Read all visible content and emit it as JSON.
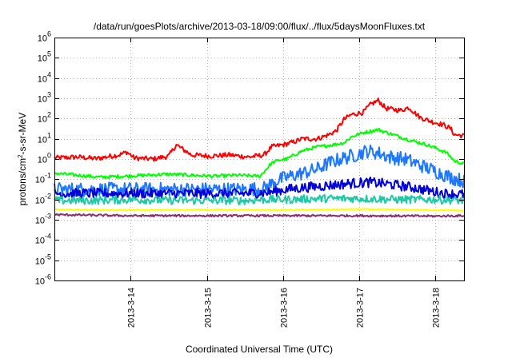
{
  "chart_data": {
    "type": "line",
    "title": "/data/run/goesPlots/archive/2013-03-18/09:00/flux/../flux/5daysMoonFluxes.txt",
    "xlabel": "Coordinated Universal Time (UTC)",
    "ylabel": "protons/cm2-s-sr-MeV",
    "ylabel_parts": {
      "pre": "protons/cm",
      "sup": "2",
      "post": "-s-sr-MeV"
    },
    "yscale": "log",
    "ylim_exp": [
      -6,
      6
    ],
    "y_ticks": [
      {
        "base": "10",
        "exp": "-6"
      },
      {
        "base": "10",
        "exp": "-5"
      },
      {
        "base": "10",
        "exp": "-4"
      },
      {
        "base": "10",
        "exp": "-3"
      },
      {
        "base": "10",
        "exp": "-2"
      },
      {
        "base": "10",
        "exp": "-1"
      },
      {
        "base": "10",
        "exp": "0"
      },
      {
        "base": "10",
        "exp": "1"
      },
      {
        "base": "10",
        "exp": "2"
      },
      {
        "base": "10",
        "exp": "3"
      },
      {
        "base": "10",
        "exp": "4"
      },
      {
        "base": "10",
        "exp": "5"
      },
      {
        "base": "10",
        "exp": "6"
      }
    ],
    "xlim": [
      "2013-03-13 00:00",
      "2013-03-18 09:00"
    ],
    "x_ticks": [
      "2013-3-14",
      "2013-3-15",
      "2013-3-16",
      "2013-3-17",
      "2013-3-18"
    ],
    "grid": true,
    "series": [
      {
        "color": "#ff0000",
        "noise": 0.12,
        "log_values": [
          [
            0.0,
            0.05
          ],
          [
            0.3,
            0.1
          ],
          [
            0.55,
            0.02
          ],
          [
            0.75,
            0.15
          ],
          [
            0.85,
            0.2
          ],
          [
            0.95,
            0.35
          ],
          [
            1.05,
            0.05
          ],
          [
            1.3,
            0.0
          ],
          [
            1.5,
            0.15
          ],
          [
            1.6,
            0.7
          ],
          [
            1.7,
            0.45
          ],
          [
            1.8,
            0.2
          ],
          [
            2.05,
            0.15
          ],
          [
            2.3,
            0.2
          ],
          [
            2.55,
            0.1
          ],
          [
            2.75,
            0.2
          ],
          [
            2.85,
            0.6
          ],
          [
            3.0,
            0.7
          ],
          [
            3.15,
            0.85
          ],
          [
            3.25,
            1.0
          ],
          [
            3.45,
            1.0
          ],
          [
            3.6,
            1.2
          ],
          [
            3.7,
            1.4
          ],
          [
            3.8,
            1.95
          ],
          [
            3.9,
            2.2
          ],
          [
            4.05,
            2.3
          ],
          [
            4.15,
            2.7
          ],
          [
            4.25,
            2.9
          ],
          [
            4.35,
            2.5
          ],
          [
            4.55,
            2.4
          ],
          [
            4.65,
            2.55
          ],
          [
            4.8,
            2.05
          ],
          [
            4.95,
            1.85
          ],
          [
            5.1,
            1.7
          ],
          [
            5.2,
            1.5
          ],
          [
            5.25,
            1.2
          ],
          [
            5.38,
            1.15
          ]
        ]
      },
      {
        "color": "#00ff00",
        "noise": 0.08,
        "log_values": [
          [
            0.0,
            -0.7
          ],
          [
            0.3,
            -0.8
          ],
          [
            0.6,
            -0.9
          ],
          [
            0.9,
            -0.85
          ],
          [
            1.2,
            -0.8
          ],
          [
            1.5,
            -0.75
          ],
          [
            1.8,
            -0.8
          ],
          [
            2.1,
            -0.85
          ],
          [
            2.4,
            -0.8
          ],
          [
            2.7,
            -0.85
          ],
          [
            2.85,
            -0.2
          ],
          [
            2.95,
            -0.05
          ],
          [
            3.05,
            0.0
          ],
          [
            3.25,
            0.4
          ],
          [
            3.45,
            0.6
          ],
          [
            3.65,
            0.7
          ],
          [
            3.8,
            0.8
          ],
          [
            3.9,
            1.1
          ],
          [
            4.05,
            1.3
          ],
          [
            4.25,
            1.45
          ],
          [
            4.45,
            1.2
          ],
          [
            4.65,
            0.95
          ],
          [
            4.85,
            0.75
          ],
          [
            5.0,
            0.55
          ],
          [
            5.15,
            0.3
          ],
          [
            5.25,
            -0.1
          ],
          [
            5.38,
            -0.25
          ]
        ]
      },
      {
        "color": "#1e78ff",
        "noise": 0.35,
        "log_values": [
          [
            0.0,
            -1.5
          ],
          [
            0.5,
            -1.5
          ],
          [
            1.0,
            -1.5
          ],
          [
            1.5,
            -1.5
          ],
          [
            2.0,
            -1.5
          ],
          [
            2.5,
            -1.5
          ],
          [
            2.75,
            -1.45
          ],
          [
            2.9,
            -1.1
          ],
          [
            3.05,
            -0.9
          ],
          [
            3.25,
            -0.7
          ],
          [
            3.45,
            -0.5
          ],
          [
            3.6,
            -0.2
          ],
          [
            3.75,
            0.0
          ],
          [
            3.95,
            0.2
          ],
          [
            4.1,
            0.4
          ],
          [
            4.25,
            0.3
          ],
          [
            4.4,
            0.1
          ],
          [
            4.6,
            0.0
          ],
          [
            4.8,
            -0.3
          ],
          [
            5.0,
            -0.6
          ],
          [
            5.2,
            -0.9
          ],
          [
            5.38,
            -1.1
          ]
        ]
      },
      {
        "color": "#0000d8",
        "noise": 0.25,
        "log_values": [
          [
            0.0,
            -1.7
          ],
          [
            0.5,
            -1.7
          ],
          [
            1.0,
            -1.7
          ],
          [
            1.5,
            -1.7
          ],
          [
            2.0,
            -1.7
          ],
          [
            2.5,
            -1.7
          ],
          [
            2.8,
            -1.65
          ],
          [
            3.05,
            -1.5
          ],
          [
            3.3,
            -1.4
          ],
          [
            3.6,
            -1.3
          ],
          [
            3.9,
            -1.2
          ],
          [
            4.15,
            -1.15
          ],
          [
            4.4,
            -1.25
          ],
          [
            4.7,
            -1.4
          ],
          [
            4.9,
            -1.55
          ],
          [
            5.1,
            -1.7
          ],
          [
            5.38,
            -1.75
          ]
        ]
      },
      {
        "color": "#20c8a8",
        "noise": 0.2,
        "log_values": [
          [
            0.0,
            -2.05
          ],
          [
            0.5,
            -2.05
          ],
          [
            1.0,
            -2.0
          ],
          [
            1.5,
            -2.05
          ],
          [
            2.0,
            -2.05
          ],
          [
            2.5,
            -2.05
          ],
          [
            2.8,
            -2.0
          ],
          [
            3.1,
            -2.0
          ],
          [
            3.5,
            -1.95
          ],
          [
            4.0,
            -1.95
          ],
          [
            4.5,
            -2.0
          ],
          [
            5.0,
            -2.0
          ],
          [
            5.38,
            -2.05
          ]
        ]
      },
      {
        "color": "#ffff00",
        "noise": 0.03,
        "log_values": [
          [
            0.0,
            -2.5
          ],
          [
            1.0,
            -2.52
          ],
          [
            2.0,
            -2.5
          ],
          [
            3.0,
            -2.52
          ],
          [
            4.0,
            -2.48
          ],
          [
            5.0,
            -2.52
          ],
          [
            5.38,
            -2.55
          ]
        ]
      },
      {
        "color": "#8b2e6e",
        "noise": 0.05,
        "log_values": [
          [
            0.0,
            -2.75
          ],
          [
            1.0,
            -2.8
          ],
          [
            2.0,
            -2.8
          ],
          [
            3.0,
            -2.8
          ],
          [
            4.0,
            -2.8
          ],
          [
            5.0,
            -2.82
          ],
          [
            5.38,
            -2.8
          ]
        ]
      }
    ]
  }
}
